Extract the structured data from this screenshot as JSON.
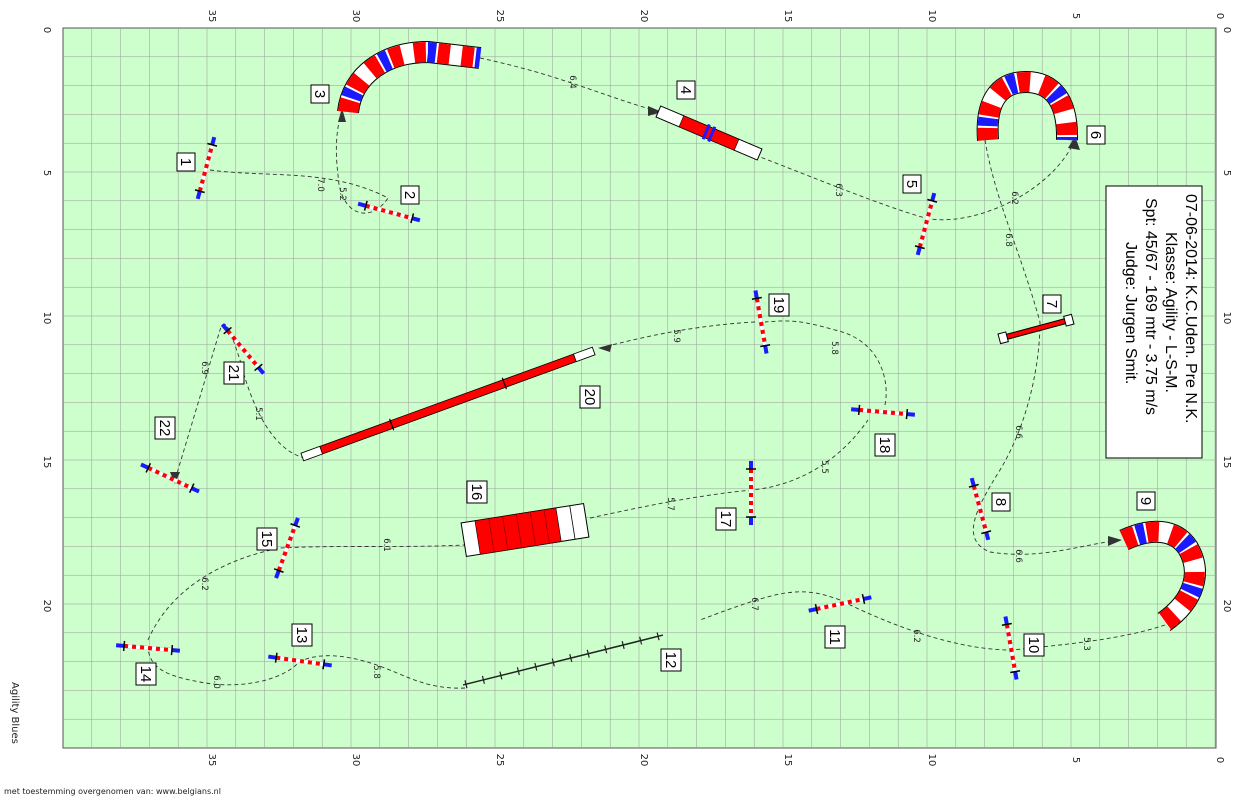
{
  "info": {
    "line1": "07-06-2014: K.C.Uden. Pre N.K.",
    "line2": "Klasse: Agility - L-S-M.",
    "line3": "Spt: 45/67 - 169 mtr - 3.75 m/s",
    "line4": "Judge: Jurgen Smit."
  },
  "brand": "Agility Blues",
  "credit": "met toestemming overgenomen van: www.belgians.nl",
  "axes": {
    "horizontal_ticks": [
      "0",
      "5",
      "10",
      "15",
      "20",
      "25",
      "30",
      "35"
    ],
    "vertical_ticks": [
      "0",
      "5",
      "10",
      "15",
      "20"
    ]
  },
  "obstacles": [
    {
      "num": "1",
      "type": "jump"
    },
    {
      "num": "2",
      "type": "jump"
    },
    {
      "num": "3",
      "type": "tunnel"
    },
    {
      "num": "4",
      "type": "walk"
    },
    {
      "num": "5",
      "type": "jump"
    },
    {
      "num": "6",
      "type": "tunnel"
    },
    {
      "num": "7",
      "type": "tire"
    },
    {
      "num": "8",
      "type": "jump"
    },
    {
      "num": "9",
      "type": "tunnel"
    },
    {
      "num": "10",
      "type": "jump"
    },
    {
      "num": "11",
      "type": "jump"
    },
    {
      "num": "12",
      "type": "weave"
    },
    {
      "num": "13",
      "type": "jump"
    },
    {
      "num": "14",
      "type": "jump"
    },
    {
      "num": "15",
      "type": "jump"
    },
    {
      "num": "16",
      "type": "table"
    },
    {
      "num": "17",
      "type": "jump"
    },
    {
      "num": "18",
      "type": "jump"
    },
    {
      "num": "19",
      "type": "jump"
    },
    {
      "num": "20",
      "type": "dogwalk"
    },
    {
      "num": "21",
      "type": "jump"
    },
    {
      "num": "22",
      "type": "jump"
    }
  ],
  "distances": [
    "7.0",
    "5.2",
    "6.4",
    "6.3",
    "6.2",
    "6.8",
    "6.6",
    "6.6",
    "5.3",
    "6.2",
    "6.7",
    "5.8",
    "6.0",
    "6.2",
    "6.1",
    "5.7",
    "5.5",
    "5.8",
    "5.9",
    "5.1",
    "6.9"
  ],
  "colors": {
    "field": "#ccffcc",
    "grid": "#9a9a9a",
    "red": "#ff0000",
    "blue": "#1a1aff",
    "white": "#ffffff"
  }
}
